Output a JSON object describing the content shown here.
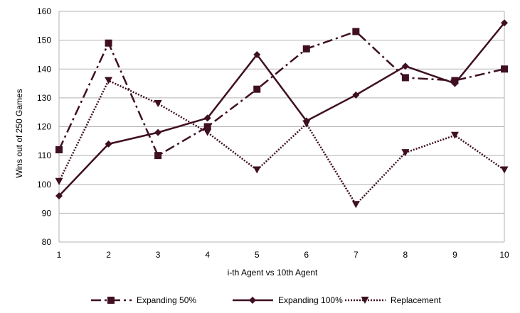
{
  "chart_data": {
    "type": "line",
    "title": "",
    "xlabel": "i-th Agent vs 10th Agent",
    "ylabel": "Wins out of 250 Games",
    "ylim": [
      80,
      160
    ],
    "yticks": [
      80,
      90,
      100,
      110,
      120,
      130,
      140,
      150,
      160
    ],
    "x": [
      1,
      2,
      3,
      4,
      5,
      6,
      7,
      8,
      9,
      10
    ],
    "grid": "horizontal",
    "legend_position": "bottom",
    "series": [
      {
        "name": "Expanding 50%",
        "values": [
          112,
          149,
          110,
          120,
          133,
          147,
          153,
          137,
          136,
          140
        ],
        "marker": "square",
        "line_style": "dash-dot"
      },
      {
        "name": "Expanding 100%",
        "values": [
          96,
          114,
          118,
          123,
          145,
          122,
          131,
          141,
          135,
          156
        ],
        "marker": "diamond",
        "line_style": "solid"
      },
      {
        "name": "Replacement",
        "values": [
          101,
          136,
          128,
          118,
          105,
          121,
          93,
          111,
          117,
          105
        ],
        "marker": "triangle-down",
        "line_style": "dotted"
      }
    ],
    "colors": {
      "series": "#3f0f22",
      "grid": "#b3b3b3",
      "axis": "#b3b3b3"
    }
  }
}
